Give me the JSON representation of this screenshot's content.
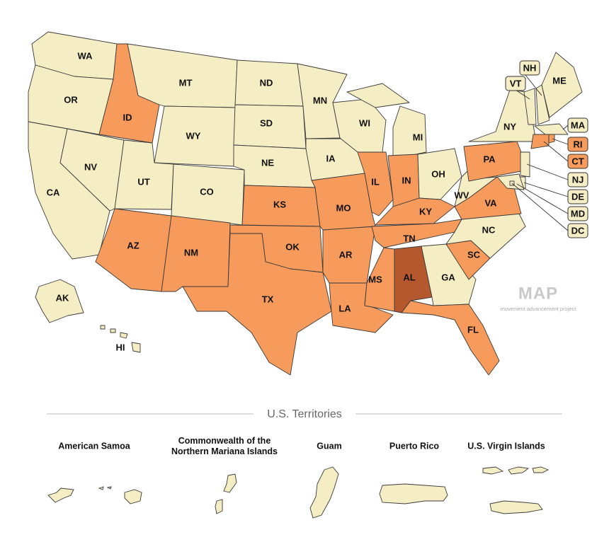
{
  "states": [
    {
      "label": "WA",
      "color": "#f5eec5"
    },
    {
      "label": "OR",
      "color": "#f5eec5"
    },
    {
      "label": "CA",
      "color": "#f5eec5"
    },
    {
      "label": "NV",
      "color": "#f5eec5"
    },
    {
      "label": "ID",
      "color": "#f79b5c"
    },
    {
      "label": "MT",
      "color": "#f5eec5"
    },
    {
      "label": "WY",
      "color": "#f5eec5"
    },
    {
      "label": "UT",
      "color": "#f5eec5"
    },
    {
      "label": "CO",
      "color": "#f5eec5"
    },
    {
      "label": "AZ",
      "color": "#f79b5c"
    },
    {
      "label": "NM",
      "color": "#f79b5c"
    },
    {
      "label": "ND",
      "color": "#f5eec5"
    },
    {
      "label": "SD",
      "color": "#f5eec5"
    },
    {
      "label": "NE",
      "color": "#f5eec5"
    },
    {
      "label": "KS",
      "color": "#f79b5c"
    },
    {
      "label": "OK",
      "color": "#f79b5c"
    },
    {
      "label": "TX",
      "color": "#f79b5c"
    },
    {
      "label": "MN",
      "color": "#f5eec5"
    },
    {
      "label": "IA",
      "color": "#f5eec5"
    },
    {
      "label": "MO",
      "color": "#f79b5c"
    },
    {
      "label": "AR",
      "color": "#f79b5c"
    },
    {
      "label": "LA",
      "color": "#f79b5c"
    },
    {
      "label": "WI",
      "color": "#f5eec5"
    },
    {
      "label": "IL",
      "color": "#f79b5c"
    },
    {
      "label": "MI",
      "color": "#f5eec5"
    },
    {
      "label": "IN",
      "color": "#f79b5c"
    },
    {
      "label": "OH",
      "color": "#f5eec5"
    },
    {
      "label": "KY",
      "color": "#f79b5c"
    },
    {
      "label": "TN",
      "color": "#f79b5c"
    },
    {
      "label": "MS",
      "color": "#f79b5c"
    },
    {
      "label": "AL",
      "color": "#b5582d"
    },
    {
      "label": "GA",
      "color": "#f5eec5"
    },
    {
      "label": "FL",
      "color": "#f79b5c"
    },
    {
      "label": "SC",
      "color": "#f79b5c"
    },
    {
      "label": "NC",
      "color": "#f5eec5"
    },
    {
      "label": "VA",
      "color": "#f79b5c"
    },
    {
      "label": "WV",
      "color": "#f5eec5"
    },
    {
      "label": "PA",
      "color": "#f79b5c"
    },
    {
      "label": "NY",
      "color": "#f5eec5"
    },
    {
      "label": "VT",
      "color": "#f5eec5"
    },
    {
      "label": "NH",
      "color": "#f5eec5"
    },
    {
      "label": "ME",
      "color": "#f5eec5"
    },
    {
      "label": "MA",
      "color": "#f5eec5"
    },
    {
      "label": "CT",
      "color": "#f79b5c"
    },
    {
      "label": "RI",
      "color": "#f79b5c"
    },
    {
      "label": "NJ",
      "color": "#f5eec5"
    },
    {
      "label": "DE",
      "color": "#f5eec5"
    },
    {
      "label": "MD",
      "color": "#f5eec5"
    },
    {
      "label": "DC",
      "color": "#f5eec5"
    },
    {
      "label": "AK",
      "color": "#f5eec5"
    },
    {
      "label": "HI",
      "color": "#f5eec5"
    }
  ],
  "territories": {
    "title": "U.S. Territories",
    "items": [
      {
        "lines": [
          "American Samoa"
        ]
      },
      {
        "lines": [
          "Commonwealth of the",
          "Northern Mariana Islands"
        ]
      },
      {
        "lines": [
          "Guam"
        ]
      },
      {
        "lines": [
          "Puerto Rico"
        ]
      },
      {
        "lines": [
          "U.S. Virgin Islands"
        ]
      }
    ]
  },
  "logo": {
    "name": "MAP",
    "tagline": "movement advancement project"
  }
}
